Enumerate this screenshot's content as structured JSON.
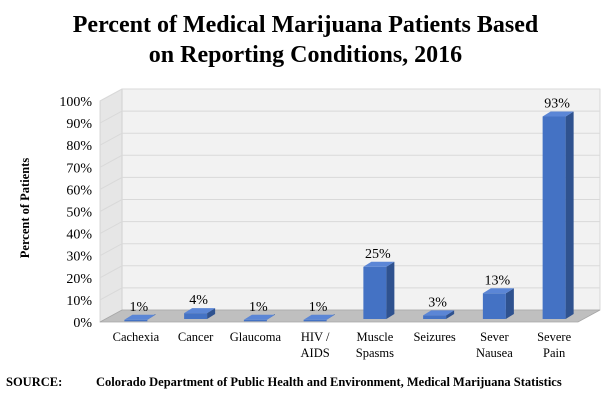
{
  "chart_data": {
    "type": "bar",
    "title_lines": [
      "Percent of Medical Marijuana Patients Based",
      "on Reporting Conditions, 2016"
    ],
    "ylabel": "Percent of Patients",
    "xlabel": "",
    "categories": [
      [
        "Cachexia"
      ],
      [
        "Cancer"
      ],
      [
        "Glaucoma"
      ],
      [
        "HIV /",
        "AIDS"
      ],
      [
        "Muscle",
        "Spasms"
      ],
      [
        "Seizures"
      ],
      [
        "Sever",
        "Nausea"
      ],
      [
        "Severe",
        "Pain"
      ]
    ],
    "values": [
      1,
      4,
      1,
      1,
      25,
      3,
      13,
      93
    ],
    "data_labels": [
      "1%",
      "4%",
      "1%",
      "1%",
      "25%",
      "3%",
      "13%",
      "93%"
    ],
    "ylim": [
      0,
      100
    ],
    "yticks": [
      "0%",
      "10%",
      "20%",
      "30%",
      "40%",
      "50%",
      "60%",
      "70%",
      "80%",
      "90%",
      "100%"
    ],
    "grid": true,
    "legend": false,
    "colors": {
      "bar_front": "#4472c4",
      "bar_side": "#2f528f",
      "bar_top": "#5b86d6",
      "wall": "#f2f2f2",
      "floor": "#bfbfbf",
      "grid": "#d9d9d9"
    }
  },
  "source": {
    "label": "SOURCE:",
    "text": "Colorado Department of Public Health and Environment, Medical Marijuana Statistics"
  }
}
